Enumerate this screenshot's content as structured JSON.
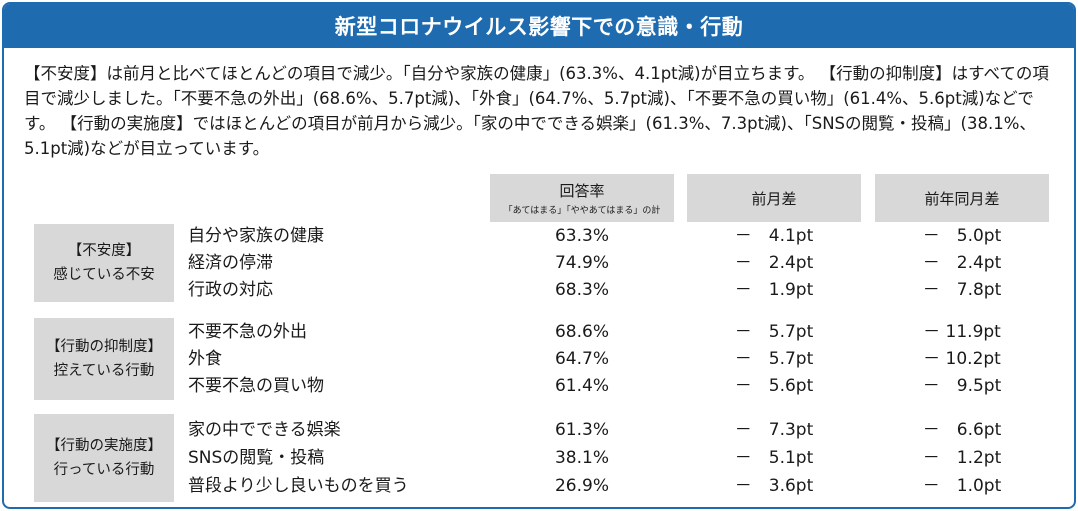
{
  "title": "新型コロナウイルス影響下での意識・行動",
  "summary": "【不安度】は前月と比べてほとんどの項目で減少。「自分や家族の健康」(63.3%、4.1pt減)が目立ちます。 【行動の抑制度】はすべての項目で減少しました。「不要不急の外出」(68.6%、5.7pt減)、「外食」(64.7%、5.7pt減)、「不要不急の買い物」(61.4%、5.6pt減)などです。 【行動の実施度】ではほとんどの項目が前月から減少。「家の中でできる娯楽」(61.3%、7.3pt減)、「SNSの閲覧・投稿」(38.1%、5.1pt減)などが目立っています。",
  "columns": {
    "rate": "回答率",
    "rate_note": "「あてはまる」「ややあてはまる」の計",
    "diff": "前月差",
    "yoy": "前年同月差"
  },
  "groups": [
    {
      "label": "【不安度】",
      "sub": "感じている不安",
      "rows": [
        {
          "item": "自分や家族の健康",
          "rate": "63.3%",
          "diff": "－　4.1pt",
          "yoy": "－　5.0pt"
        },
        {
          "item": "経済の停滞",
          "rate": "74.9%",
          "diff": "－　2.4pt",
          "yoy": "－　2.4pt"
        },
        {
          "item": "行政の対応",
          "rate": "68.3%",
          "diff": "－　1.9pt",
          "yoy": "－　7.8pt"
        }
      ]
    },
    {
      "label": "【行動の抑制度】",
      "sub": "控えている行動",
      "rows": [
        {
          "item": "不要不急の外出",
          "rate": "68.6%",
          "diff": "－　5.7pt",
          "yoy": "－ 11.9pt"
        },
        {
          "item": "外食",
          "rate": "64.7%",
          "diff": "－　5.7pt",
          "yoy": "－ 10.2pt"
        },
        {
          "item": "不要不急の買い物",
          "rate": "61.4%",
          "diff": "－　5.6pt",
          "yoy": "－　9.5pt"
        }
      ]
    },
    {
      "label": "【行動の実施度】",
      "sub": "行っている行動",
      "rows": [
        {
          "item": "家の中でできる娯楽",
          "rate": "61.3%",
          "diff": "－　7.3pt",
          "yoy": "－　6.6pt"
        },
        {
          "item": "SNSの閲覧・投稿",
          "rate": "38.1%",
          "diff": "－　5.1pt",
          "yoy": "－　1.2pt"
        },
        {
          "item": "普段より少し良いものを買う",
          "rate": "26.9%",
          "diff": "－　3.6pt",
          "yoy": "－　1.0pt"
        }
      ]
    }
  ]
}
